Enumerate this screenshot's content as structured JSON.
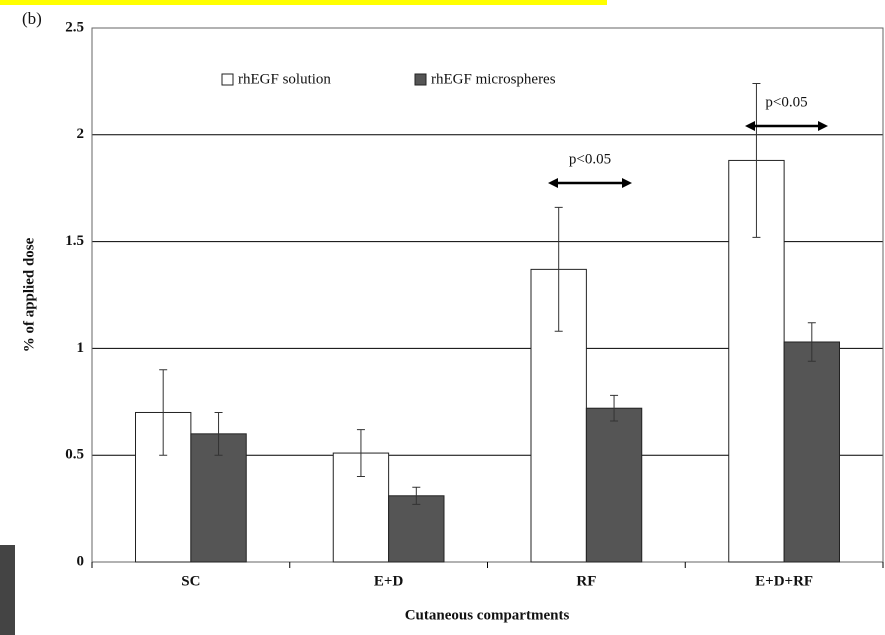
{
  "chart_data": {
    "type": "bar",
    "panel_label": "(b)",
    "x_label": "Cutaneous compartments",
    "y_label": "% of applied dose",
    "categories": [
      "SC",
      "E+D",
      "RF",
      "E+D+RF"
    ],
    "series": [
      {
        "name": "rhEGF solution",
        "color": "#ffffff",
        "values": [
          0.7,
          0.51,
          1.37,
          1.88
        ],
        "errors": [
          0.2,
          0.11,
          0.29,
          0.36
        ]
      },
      {
        "name": "rhEGF microspheres",
        "color": "#555555",
        "values": [
          0.6,
          0.31,
          0.72,
          1.03
        ],
        "errors": [
          0.1,
          0.04,
          0.06,
          0.09
        ]
      }
    ],
    "annotations": [
      "p<0.05",
      "p<0.05"
    ],
    "ylim": [
      0,
      2.5
    ],
    "yticks": [
      0,
      0.5,
      1,
      1.5,
      2,
      2.5
    ],
    "grid": true
  }
}
